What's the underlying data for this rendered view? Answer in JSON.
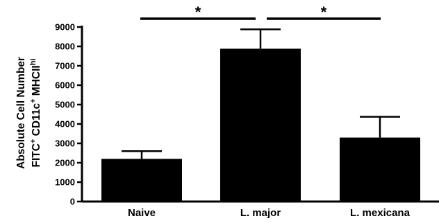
{
  "chart_data": {
    "type": "bar",
    "title": "",
    "categories": [
      "Naive",
      "L. major",
      "L. mexicana"
    ],
    "values": [
      2200,
      7880,
      3300
    ],
    "error_upper": [
      2600,
      8880,
      4370
    ],
    "ylim": [
      0,
      9000
    ],
    "yticks": [
      "0",
      "1000",
      "2000",
      "3000",
      "4000",
      "5000",
      "6000",
      "7000",
      "8000",
      "9000"
    ],
    "ylabel_line1": "Absolute Cell Number",
    "ylabel_line2": {
      "parts": [
        {
          "text": "FITC",
          "sup": false
        },
        {
          "text": "+",
          "sup": true
        },
        {
          "text": " CD11c",
          "sup": false
        },
        {
          "text": "+",
          "sup": true
        },
        {
          "text": " MHCII",
          "sup": false
        },
        {
          "text": "hi",
          "sup": true
        }
      ]
    },
    "bar_color": "#000000",
    "grid": false,
    "significance": [
      {
        "from": 0,
        "to": 1,
        "label": "*"
      },
      {
        "from": 1,
        "to": 2,
        "label": "*"
      }
    ]
  }
}
